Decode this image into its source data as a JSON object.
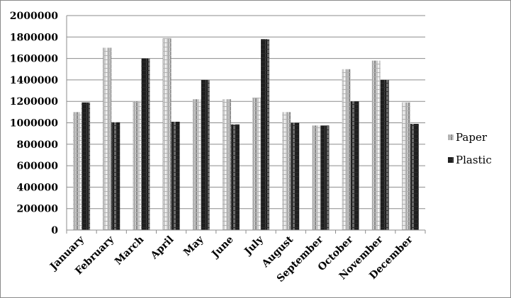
{
  "chart_data": {
    "type": "bar",
    "categories": [
      "January",
      "February",
      "March",
      "April",
      "May",
      "June",
      "July",
      "August",
      "September",
      "October",
      "November",
      "December"
    ],
    "series": [
      {
        "name": "Paper",
        "color": "#bdbdbd",
        "values": [
          1100000,
          1700000,
          1200000,
          1790000,
          1220000,
          1220000,
          1235000,
          1100000,
          975000,
          1500000,
          1580000,
          1190000
        ]
      },
      {
        "name": "Plastic",
        "color": "#2e2e2e",
        "values": [
          1190000,
          1005000,
          1600000,
          1010000,
          1400000,
          985000,
          1780000,
          1000000,
          975000,
          1200000,
          1400000,
          990000
        ]
      }
    ],
    "yticks": [
      "0",
      "200000",
      "400000",
      "600000",
      "800000",
      "1000000",
      "1200000",
      "1400000",
      "1600000",
      "1800000",
      "2000000"
    ],
    "ylim": [
      0,
      2000000
    ],
    "grid": true,
    "legend": "right"
  }
}
